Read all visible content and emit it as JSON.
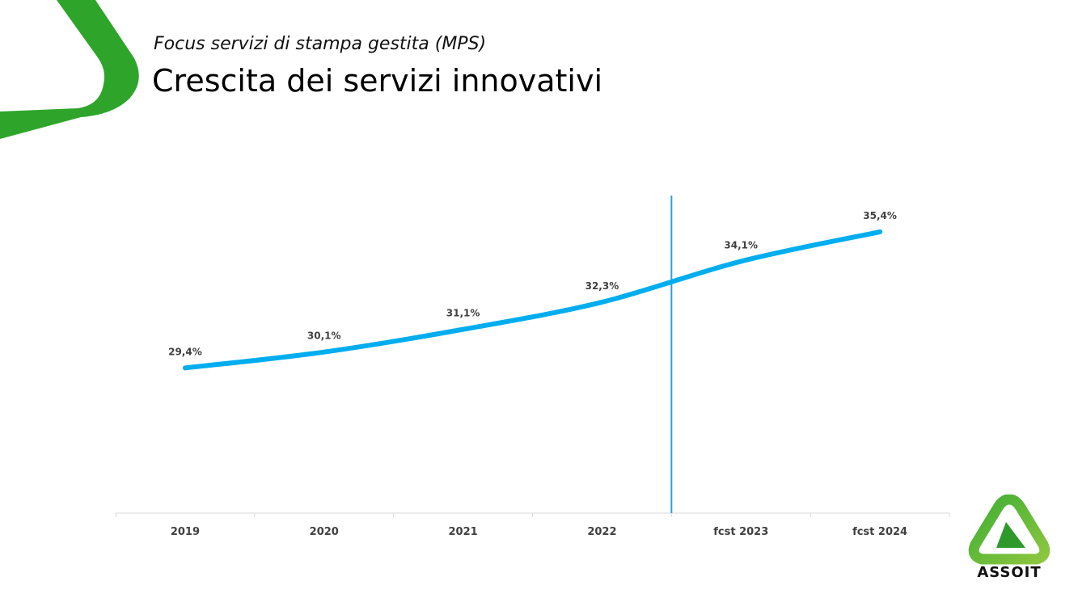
{
  "header": {
    "subtitle": "Focus servizi di stampa gestita (MPS)",
    "title": "Crescita dei servizi innovativi"
  },
  "colors": {
    "line": "#00adef",
    "divider": "#2d9fd6",
    "brand_green": "#3aab2e",
    "axis": "#d9d9d9",
    "label": "#404040"
  },
  "chart_data": {
    "type": "line",
    "categories": [
      "2019",
      "2020",
      "2021",
      "2022",
      "fcst 2023",
      "fcst 2024"
    ],
    "values": [
      29.4,
      30.1,
      31.1,
      32.3,
      34.1,
      35.4
    ],
    "labels": [
      "29,4%",
      "30,1%",
      "31,1%",
      "32,3%",
      "34,1%",
      "35,4%"
    ],
    "divider_between": [
      "2022",
      "fcst 2023"
    ],
    "ylim": [
      23.0,
      37.0
    ],
    "grid": false,
    "legend": "none"
  },
  "logo": {
    "text": "ASSOIT",
    "icon": "assoit-triangle-logo"
  }
}
